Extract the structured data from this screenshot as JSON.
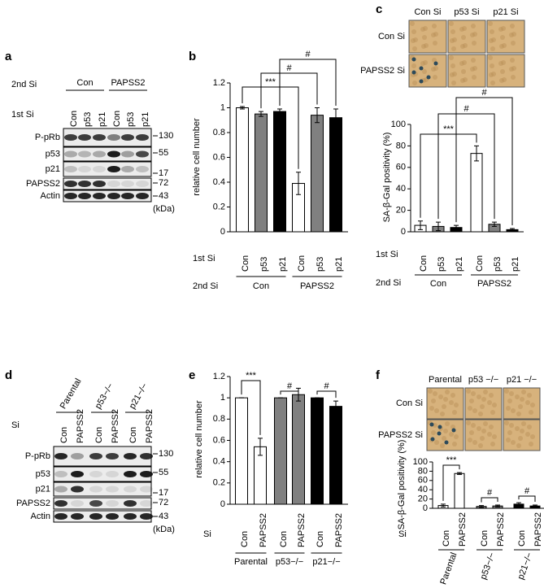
{
  "panel_labels": [
    "a",
    "b",
    "c",
    "d",
    "e",
    "f"
  ],
  "blot_a": {
    "header_rows": [
      "2nd Si",
      "1st Si"
    ],
    "groups": [
      "Con",
      "PAPSS2"
    ],
    "lanes": [
      "Con",
      "p53",
      "p21",
      "Con",
      "p53",
      "p21"
    ],
    "proteins": [
      "P-pRb",
      "p53",
      "p21",
      "PAPSS2",
      "Actin"
    ],
    "markers": [
      130,
      55,
      17,
      72,
      43
    ],
    "unit": "(kDa)"
  },
  "blot_d": {
    "header_rows": [
      "Si"
    ],
    "groups": [
      "Parental",
      "p53−/−",
      "p21−/−"
    ],
    "lanes": [
      "Con",
      "PAPSS2",
      "Con",
      "PAPSS2",
      "Con",
      "PAPSS2"
    ],
    "proteins": [
      "P-pRb",
      "p53",
      "p21",
      "PAPSS2",
      "Actin"
    ],
    "markers": [
      130,
      55,
      17,
      72,
      43
    ],
    "unit": "(kDa)"
  },
  "images_c": {
    "columns": [
      "Con Si",
      "p53 Si",
      "p21 Si"
    ],
    "rows": [
      "Con Si",
      "PAPSS2 Si"
    ]
  },
  "images_f": {
    "columns": [
      "Parental",
      "p53 −/−",
      "p21 −/−"
    ],
    "rows": [
      "Con Si",
      "PAPSS2 Si"
    ]
  },
  "chart_data": [
    {
      "type": "bar",
      "y_label": "relative cell number",
      "categories": [
        "Con",
        "p53",
        "p21",
        "Con",
        "p53",
        "p21"
      ],
      "values": [
        1.0,
        0.95,
        0.97,
        0.39,
        0.94,
        0.92
      ],
      "errors": [
        0.01,
        0.02,
        0.02,
        0.09,
        0.06,
        0.07
      ],
      "colors": [
        "#ffffff",
        "#808080",
        "#000000",
        "#ffffff",
        "#808080",
        "#000000"
      ],
      "ylim": [
        0,
        1.2
      ],
      "yticks": [
        0,
        0.2,
        0.4,
        0.6,
        0.8,
        1,
        1.2
      ],
      "annotations": [
        "***",
        "#",
        "#"
      ],
      "row_labels": [
        "1st Si",
        "2nd Si"
      ],
      "groups": [
        "Con",
        "PAPSS2"
      ]
    },
    {
      "type": "bar",
      "y_label": "SA-β-Gal positivity (%)",
      "categories": [
        "Con",
        "p53",
        "p21",
        "Con",
        "p53",
        "p21"
      ],
      "values": [
        6,
        5,
        4,
        73,
        7,
        2
      ],
      "errors": [
        4,
        4,
        2,
        7,
        2,
        1
      ],
      "colors": [
        "#ffffff",
        "#808080",
        "#000000",
        "#ffffff",
        "#808080",
        "#000000"
      ],
      "ylim": [
        0,
        100
      ],
      "yticks": [
        0,
        20,
        40,
        60,
        80,
        100
      ],
      "annotations": [
        "***",
        "#",
        "#"
      ],
      "row_labels": [
        "1st Si",
        "2nd Si"
      ],
      "groups": [
        "Con",
        "PAPSS2"
      ]
    },
    {
      "type": "bar",
      "y_label": "relative cell number",
      "categories": [
        "Con",
        "PAPSS2",
        "Con",
        "PAPSS2",
        "Con",
        "PAPSS2"
      ],
      "values": [
        1.0,
        0.54,
        1.0,
        1.03,
        1.0,
        0.92
      ],
      "errors": [
        0,
        0.08,
        0,
        0.06,
        0,
        0.05
      ],
      "colors": [
        "#ffffff",
        "#ffffff",
        "#808080",
        "#808080",
        "#000000",
        "#000000"
      ],
      "ylim": [
        0,
        1.2
      ],
      "yticks": [
        0,
        0.2,
        0.4,
        0.6,
        0.8,
        1,
        1.2
      ],
      "annotations": [
        "***",
        "#",
        "#"
      ],
      "row_labels": [
        "Si"
      ],
      "groups": [
        "Parental",
        "p53−/−",
        "p21−/−"
      ]
    },
    {
      "type": "bar",
      "y_label": "SA-β-Gal positivity (%)",
      "categories": [
        "Con",
        "PAPSS2",
        "Con",
        "PAPSS2",
        "Con",
        "PAPSS2"
      ],
      "values": [
        6,
        75,
        4,
        5,
        9,
        5
      ],
      "errors": [
        3,
        2,
        2,
        2,
        3,
        2
      ],
      "colors": [
        "#ffffff",
        "#ffffff",
        "#808080",
        "#808080",
        "#000000",
        "#000000"
      ],
      "ylim": [
        0,
        100
      ],
      "yticks": [
        0,
        20,
        40,
        60,
        80,
        100
      ],
      "annotations": [
        "***",
        "#",
        "#"
      ],
      "row_labels": [
        "Si"
      ],
      "groups": [
        "Parental",
        "p53−/−",
        "p21−/−"
      ]
    }
  ]
}
